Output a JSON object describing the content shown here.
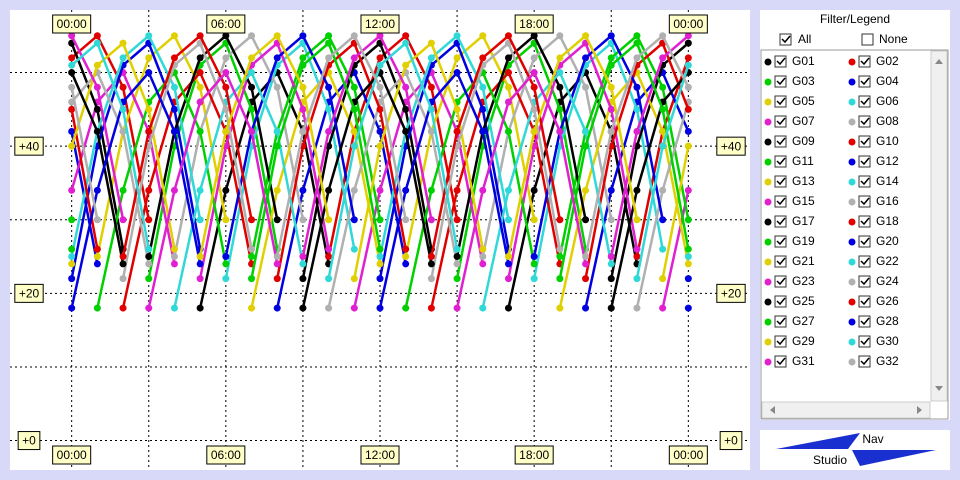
{
  "chart_data": {
    "type": "line",
    "x": [
      0,
      1,
      2,
      3,
      4,
      5,
      6,
      7,
      8,
      9,
      10,
      11,
      12,
      13,
      14,
      15,
      16,
      17,
      18,
      19,
      20,
      21,
      22,
      23,
      24
    ],
    "xlim": [
      -2.4,
      26.4
    ],
    "ylim": [
      -4,
      58.5
    ],
    "xticks": [
      {
        "value": 0,
        "label": "00:00"
      },
      {
        "value": 3,
        "label": null
      },
      {
        "value": 6,
        "label": "06:00"
      },
      {
        "value": 9,
        "label": null
      },
      {
        "value": 12,
        "label": "12:00"
      },
      {
        "value": 15,
        "label": null
      },
      {
        "value": 18,
        "label": "18:00"
      },
      {
        "value": 21,
        "label": null
      },
      {
        "value": 24,
        "label": "00:00"
      }
    ],
    "yticks": [
      {
        "value": 0,
        "label": "+0"
      },
      {
        "value": 10,
        "label": null
      },
      {
        "value": 20,
        "label": "+20"
      },
      {
        "value": 30,
        "label": null
      },
      {
        "value": 40,
        "label": "+40"
      },
      {
        "value": 50,
        "label": null
      }
    ],
    "grid": true,
    "series": [
      {
        "name": "G01",
        "color": "#000000",
        "values": [
          null,
          null,
          null,
          null,
          null,
          18,
          34,
          46,
          50,
          42,
          24,
          null,
          null,
          null,
          null,
          null,
          null,
          18,
          34,
          46,
          50,
          42,
          24,
          null,
          null
        ]
      },
      {
        "name": "G02",
        "color": "#e00000",
        "values": [
          52,
          55,
          48,
          30,
          null,
          null,
          null,
          null,
          null,
          null,
          25,
          42,
          52,
          55,
          48,
          30,
          null,
          null,
          null,
          null,
          null,
          null,
          25,
          42,
          52
        ]
      },
      {
        "name": "G03",
        "color": "#00d000",
        "values": [
          null,
          null,
          null,
          22,
          40,
          51,
          54,
          45,
          26,
          null,
          null,
          null,
          null,
          null,
          null,
          22,
          40,
          51,
          54,
          45,
          26,
          null,
          null,
          null,
          null
        ]
      },
      {
        "name": "G04",
        "color": "#0000e0",
        "values": [
          42,
          24,
          null,
          null,
          null,
          null,
          null,
          null,
          18,
          34,
          46,
          50,
          42,
          24,
          null,
          null,
          null,
          null,
          null,
          null,
          18,
          34,
          46,
          50,
          42
        ]
      },
      {
        "name": "G05",
        "color": "#e0d000",
        "values": [
          null,
          25,
          42,
          52,
          55,
          48,
          30,
          null,
          null,
          null,
          null,
          null,
          null,
          25,
          42,
          52,
          55,
          48,
          30,
          null,
          null,
          null,
          null,
          null,
          null
        ]
      },
      {
        "name": "G06",
        "color": "#30d8d8",
        "values": [
          null,
          null,
          null,
          null,
          null,
          null,
          22,
          40,
          51,
          54,
          45,
          26,
          null,
          null,
          null,
          null,
          null,
          null,
          22,
          40,
          51,
          54,
          45,
          26,
          null
        ]
      },
      {
        "name": "G07",
        "color": "#e020d0",
        "values": [
          34,
          46,
          50,
          42,
          24,
          null,
          null,
          null,
          null,
          null,
          null,
          18,
          34,
          46,
          50,
          42,
          24,
          null,
          null,
          null,
          null,
          null,
          null,
          18,
          34
        ]
      },
      {
        "name": "G08",
        "color": "#b0b0b0",
        "values": [
          null,
          null,
          null,
          null,
          25,
          42,
          52,
          55,
          48,
          30,
          null,
          null,
          null,
          null,
          null,
          null,
          25,
          42,
          52,
          55,
          48,
          30,
          null,
          null,
          null
        ]
      },
      {
        "name": "G09",
        "color": "#000000",
        "values": [
          54,
          45,
          26,
          null,
          null,
          null,
          null,
          null,
          null,
          22,
          40,
          51,
          54,
          45,
          26,
          null,
          null,
          null,
          null,
          null,
          null,
          22,
          40,
          51,
          54
        ]
      },
      {
        "name": "G10",
        "color": "#e00000",
        "values": [
          null,
          null,
          18,
          34,
          46,
          50,
          42,
          24,
          null,
          null,
          null,
          null,
          null,
          null,
          18,
          34,
          46,
          50,
          42,
          24,
          null,
          null,
          null,
          null,
          null
        ]
      },
      {
        "name": "G11",
        "color": "#00d000",
        "values": [
          30,
          null,
          null,
          null,
          null,
          null,
          null,
          25,
          42,
          52,
          55,
          48,
          30,
          null,
          null,
          null,
          null,
          null,
          null,
          25,
          42,
          52,
          55,
          48,
          30
        ]
      },
      {
        "name": "G12",
        "color": "#0000e0",
        "values": [
          22,
          40,
          51,
          54,
          45,
          26,
          null,
          null,
          null,
          null,
          null,
          null,
          22,
          40,
          51,
          54,
          45,
          26,
          null,
          null,
          null,
          null,
          null,
          null,
          22
        ]
      },
      {
        "name": "G13",
        "color": "#e0d000",
        "values": [
          24,
          null,
          null,
          null,
          null,
          null,
          null,
          18,
          34,
          46,
          50,
          42,
          24,
          null,
          null,
          null,
          null,
          null,
          null,
          18,
          34,
          46,
          50,
          42,
          24
        ]
      },
      {
        "name": "G14",
        "color": "#30d8d8",
        "values": [
          25,
          42,
          52,
          55,
          48,
          30,
          null,
          null,
          null,
          null,
          null,
          null,
          25,
          42,
          52,
          55,
          48,
          30,
          null,
          null,
          null,
          null,
          null,
          null,
          25
        ]
      },
      {
        "name": "G15",
        "color": "#e020d0",
        "values": [
          null,
          null,
          null,
          null,
          null,
          22,
          40,
          51,
          54,
          45,
          26,
          null,
          null,
          null,
          null,
          null,
          null,
          22,
          40,
          51,
          54,
          45,
          26,
          null,
          null
        ]
      },
      {
        "name": "G16",
        "color": "#b0b0b0",
        "values": [
          46,
          50,
          42,
          24,
          null,
          null,
          null,
          null,
          null,
          null,
          18,
          34,
          46,
          50,
          42,
          24,
          null,
          null,
          null,
          null,
          null,
          null,
          18,
          34,
          46
        ]
      },
      {
        "name": "G17",
        "color": "#000000",
        "values": [
          null,
          null,
          null,
          25,
          42,
          52,
          55,
          48,
          30,
          null,
          null,
          null,
          null,
          null,
          null,
          25,
          42,
          52,
          55,
          48,
          30,
          null,
          null,
          null,
          null
        ]
      },
      {
        "name": "G18",
        "color": "#e00000",
        "values": [
          45,
          26,
          null,
          null,
          null,
          null,
          null,
          null,
          22,
          40,
          51,
          54,
          45,
          26,
          null,
          null,
          null,
          null,
          null,
          null,
          22,
          40,
          51,
          54,
          45
        ]
      },
      {
        "name": "G19",
        "color": "#00d000",
        "values": [
          null,
          18,
          34,
          46,
          50,
          42,
          24,
          null,
          null,
          null,
          null,
          null,
          null,
          18,
          34,
          46,
          50,
          42,
          24,
          null,
          null,
          null,
          null,
          null,
          null
        ]
      },
      {
        "name": "G20",
        "color": "#0000e0",
        "values": [
          null,
          null,
          null,
          null,
          null,
          null,
          25,
          42,
          52,
          55,
          48,
          30,
          null,
          null,
          null,
          null,
          null,
          null,
          25,
          42,
          52,
          55,
          48,
          30,
          null
        ]
      },
      {
        "name": "G21",
        "color": "#e0d000",
        "values": [
          40,
          51,
          54,
          45,
          26,
          null,
          null,
          null,
          null,
          null,
          null,
          22,
          40,
          51,
          54,
          45,
          26,
          null,
          null,
          null,
          null,
          null,
          null,
          22,
          40
        ]
      },
      {
        "name": "G22",
        "color": "#30d8d8",
        "values": [
          null,
          null,
          null,
          null,
          18,
          34,
          46,
          50,
          42,
          24,
          null,
          null,
          null,
          null,
          null,
          null,
          18,
          34,
          46,
          50,
          42,
          24,
          null,
          null,
          null
        ]
      },
      {
        "name": "G23",
        "color": "#e020d0",
        "values": [
          55,
          48,
          30,
          null,
          null,
          null,
          null,
          null,
          null,
          25,
          42,
          52,
          55,
          48,
          30,
          null,
          null,
          null,
          null,
          null,
          null,
          25,
          42,
          52,
          55
        ]
      },
      {
        "name": "G24",
        "color": "#b0b0b0",
        "values": [
          null,
          null,
          22,
          40,
          51,
          54,
          45,
          26,
          null,
          null,
          null,
          null,
          null,
          null,
          22,
          40,
          51,
          54,
          45,
          26,
          null,
          null,
          null,
          null,
          null
        ]
      },
      {
        "name": "G25",
        "color": "#000000",
        "values": [
          50,
          42,
          24,
          null,
          null,
          null,
          null,
          null,
          null,
          18,
          34,
          46,
          50,
          42,
          24,
          null,
          null,
          null,
          null,
          null,
          null,
          18,
          34,
          46,
          50
        ]
      },
      {
        "name": "G26",
        "color": "#e00000",
        "values": [
          null,
          null,
          25,
          42,
          52,
          55,
          48,
          30,
          null,
          null,
          null,
          null,
          null,
          null,
          25,
          42,
          52,
          55,
          48,
          30,
          null,
          null,
          null,
          null,
          null
        ]
      },
      {
        "name": "G27",
        "color": "#00d000",
        "values": [
          26,
          null,
          null,
          null,
          null,
          null,
          null,
          22,
          40,
          51,
          54,
          45,
          26,
          null,
          null,
          null,
          null,
          null,
          null,
          22,
          40,
          51,
          54,
          45,
          26
        ]
      },
      {
        "name": "G28",
        "color": "#0000e0",
        "values": [
          18,
          34,
          46,
          50,
          42,
          24,
          null,
          null,
          null,
          null,
          null,
          null,
          18,
          34,
          46,
          50,
          42,
          24,
          null,
          null,
          null,
          null,
          null,
          null,
          18
        ]
      },
      {
        "name": "G29",
        "color": "#e0d000",
        "values": [
          null,
          null,
          null,
          null,
          null,
          25,
          42,
          52,
          55,
          48,
          30,
          null,
          null,
          null,
          null,
          null,
          null,
          25,
          42,
          52,
          55,
          48,
          30,
          null,
          null
        ]
      },
      {
        "name": "G30",
        "color": "#30d8d8",
        "values": [
          51,
          54,
          45,
          26,
          null,
          null,
          null,
          null,
          null,
          null,
          22,
          40,
          51,
          54,
          45,
          26,
          null,
          null,
          null,
          null,
          null,
          null,
          22,
          40,
          51
        ]
      },
      {
        "name": "G31",
        "color": "#e020d0",
        "values": [
          null,
          null,
          null,
          18,
          34,
          46,
          50,
          42,
          24,
          null,
          null,
          null,
          null,
          null,
          null,
          18,
          34,
          46,
          50,
          42,
          24,
          null,
          null,
          null,
          null
        ]
      },
      {
        "name": "G32",
        "color": "#b0b0b0",
        "values": [
          48,
          30,
          null,
          null,
          null,
          null,
          null,
          null,
          25,
          42,
          52,
          55,
          48,
          30,
          null,
          null,
          null,
          null,
          null,
          null,
          25,
          42,
          52,
          55,
          48
        ]
      }
    ]
  },
  "legend_panel": {
    "title": "Filter/Legend",
    "all": "All",
    "none": "None"
  },
  "logo": {
    "top": "Nav",
    "bottom": "Studio"
  }
}
